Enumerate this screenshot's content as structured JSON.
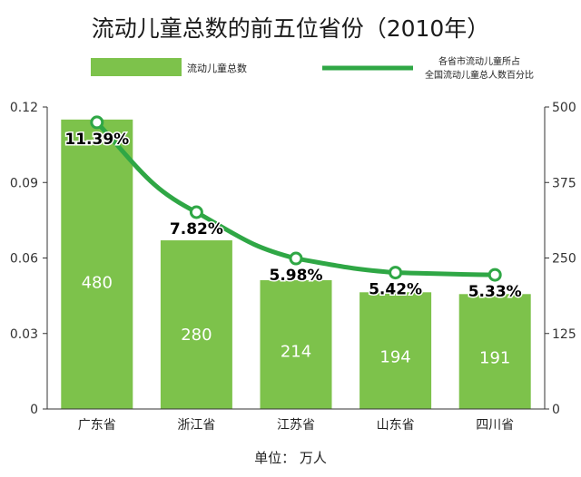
{
  "chart_data": {
    "type": "bar",
    "title": "流动儿童总数的前五位省份（2010年）",
    "categories": [
      "广东省",
      "浙江省",
      "江苏省",
      "山东省",
      "四川省"
    ],
    "series": [
      {
        "name": "流动儿童总数",
        "kind": "bar",
        "axis": "right",
        "values": [
          480,
          280,
          214,
          194,
          191
        ],
        "labels": [
          "480",
          "280",
          "214",
          "194",
          "191"
        ]
      },
      {
        "name_lines": [
          "各省市流动儿童所占",
          "全国流动儿童总人数百分比"
        ],
        "kind": "line",
        "axis": "left",
        "values": [
          0.1139,
          0.0782,
          0.0598,
          0.0542,
          0.0533
        ],
        "labels": [
          "11.39%",
          "7.82%",
          "5.98%",
          "5.42%",
          "5.33%"
        ]
      }
    ],
    "y_left": {
      "ylim": [
        0,
        0.12
      ],
      "ticks": [
        "0",
        "0.03",
        "0.06",
        "0.09",
        "0.12"
      ]
    },
    "y_right": {
      "ylim": [
        0,
        500
      ],
      "ticks": [
        "0",
        "125",
        "250",
        "375",
        "500"
      ]
    },
    "unit_note": "单位：  万人",
    "legend_position": "top",
    "grid": false,
    "colors": {
      "bar": "#7dc24b",
      "bar_stroke": "#ffffff",
      "line": "#2fa745",
      "marker_fill": "#ffffff",
      "title": "#1a1a1a",
      "axis": "#333333"
    }
  }
}
